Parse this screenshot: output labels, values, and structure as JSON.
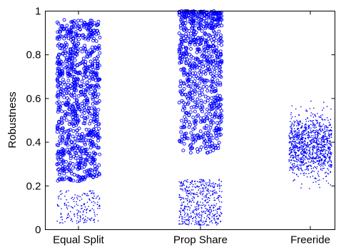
{
  "chart_data": {
    "type": "scatter",
    "title": "",
    "xlabel": "",
    "ylabel": "Robustness",
    "ylim": [
      0,
      1
    ],
    "yticks": [
      "0",
      "0.2",
      "0.4",
      "0.6",
      "0.8",
      "1"
    ],
    "categories": [
      "Equal Split",
      "Prop Share",
      "Freeride"
    ],
    "grid": false,
    "legend": "none",
    "marker_color": "#0000ff",
    "groups": [
      {
        "category": "Equal Split",
        "circle_band": [
          0.22,
          0.96
        ],
        "circle_count": 900,
        "dot_band": [
          0.03,
          0.18
        ],
        "dot_count": 180
      },
      {
        "category": "Prop Share",
        "circle_band": [
          0.35,
          1.0
        ],
        "circle_count": 750,
        "dot_band": [
          0.02,
          0.23
        ],
        "dot_count": 500
      },
      {
        "category": "Freeride",
        "circle_band": [],
        "circle_count": 0,
        "dot_band": [
          0.17,
          0.6
        ],
        "dot_count": 1100
      }
    ]
  }
}
